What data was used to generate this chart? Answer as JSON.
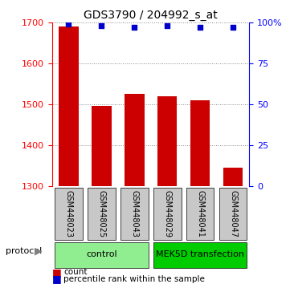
{
  "title": "GDS3790 / 204992_s_at",
  "samples": [
    "GSM448023",
    "GSM448025",
    "GSM448043",
    "GSM448029",
    "GSM448041",
    "GSM448047"
  ],
  "counts": [
    1690,
    1497,
    1525,
    1520,
    1510,
    1345
  ],
  "percentiles": [
    99,
    98,
    97,
    98,
    97,
    97
  ],
  "ylim_left": [
    1300,
    1700
  ],
  "ylim_right": [
    0,
    100
  ],
  "yticks_left": [
    1300,
    1400,
    1500,
    1600,
    1700
  ],
  "yticks_right": [
    0,
    25,
    50,
    75,
    100
  ],
  "bar_color": "#cc0000",
  "dot_color": "#0000cc",
  "bar_width": 0.6,
  "groups": [
    {
      "label": "control",
      "indices": [
        0,
        1,
        2
      ],
      "color": "#90ee90"
    },
    {
      "label": "MEK5D transfection",
      "indices": [
        3,
        4,
        5
      ],
      "color": "#00cc00"
    }
  ],
  "sample_box_color": "#c8c8c8",
  "legend_bar_label": "count",
  "legend_dot_label": "percentile rank within the sample",
  "protocol_label": "protocol",
  "background_color": "#ffffff",
  "gridline_style": "dotted",
  "gridline_color": "#888888"
}
